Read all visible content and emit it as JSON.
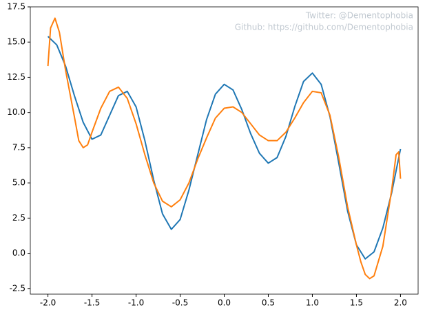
{
  "chart_data": {
    "type": "line",
    "annotations": [
      "Twitter: @Dementophobia",
      "Github: https://github.com/Dementophobia"
    ],
    "xlim": [
      -2.2,
      2.2
    ],
    "ylim": [
      -2.9,
      17.5
    ],
    "xticks": [
      {
        "value": -2,
        "label": "-2.0"
      },
      -1.5,
      {
        "value": -1,
        "label": "-1.0"
      },
      -0.5,
      {
        "value": 0,
        "label": "0.0"
      },
      0.5,
      {
        "value": 1,
        "label": "1.0"
      },
      1.5,
      {
        "value": 2,
        "label": "2.0"
      }
    ],
    "yticks": [
      -2.5,
      {
        "value": 0,
        "label": "0.0"
      },
      2.5,
      {
        "value": 5,
        "label": "5.0"
      },
      7.5,
      {
        "value": 10,
        "label": "10.0"
      },
      12.5,
      {
        "value": 15,
        "label": "15.0"
      },
      17.5
    ],
    "series": [
      {
        "color": "#1f77b4",
        "x": [
          -2.0,
          -1.9,
          -1.8,
          -1.7,
          -1.6,
          -1.5,
          -1.4,
          -1.3,
          -1.2,
          -1.1,
          -1.0,
          -0.9,
          -0.8,
          -0.7,
          -0.6,
          -0.5,
          -0.4,
          -0.3,
          -0.2,
          -0.1,
          0.0,
          0.1,
          0.2,
          0.3,
          0.4,
          0.5,
          0.6,
          0.7,
          0.8,
          0.9,
          1.0,
          1.1,
          1.2,
          1.3,
          1.4,
          1.5,
          1.6,
          1.7,
          1.8,
          1.9,
          2.0
        ],
        "values": [
          15.4,
          14.8,
          13.3,
          11.2,
          9.3,
          8.1,
          8.4,
          9.8,
          11.2,
          11.5,
          10.4,
          8.0,
          5.2,
          2.8,
          1.7,
          2.4,
          4.5,
          7.0,
          9.5,
          11.3,
          12.0,
          11.6,
          10.2,
          8.5,
          7.1,
          6.4,
          6.8,
          8.3,
          10.4,
          12.2,
          12.8,
          12.0,
          9.7,
          6.4,
          3.0,
          0.6,
          -0.4,
          0.1,
          1.8,
          4.3,
          7.4
        ]
      },
      {
        "color": "#ff7f0e",
        "x": [
          -2.0,
          -1.97,
          -1.92,
          -1.87,
          -1.8,
          -1.7,
          -1.65,
          -1.6,
          -1.55,
          -1.5,
          -1.4,
          -1.3,
          -1.2,
          -1.1,
          -1.0,
          -0.9,
          -0.8,
          -0.7,
          -0.6,
          -0.5,
          -0.4,
          -0.3,
          -0.2,
          -0.1,
          0.0,
          0.1,
          0.2,
          0.3,
          0.4,
          0.5,
          0.6,
          0.7,
          0.8,
          0.9,
          1.0,
          1.1,
          1.2,
          1.3,
          1.4,
          1.5,
          1.55,
          1.6,
          1.65,
          1.7,
          1.8,
          1.9,
          1.95,
          1.98,
          2.0
        ],
        "values": [
          13.3,
          16.0,
          16.7,
          15.7,
          13.0,
          9.7,
          8.0,
          7.5,
          7.7,
          8.6,
          10.3,
          11.5,
          11.8,
          11.0,
          9.2,
          7.0,
          5.0,
          3.7,
          3.3,
          3.8,
          5.0,
          6.7,
          8.2,
          9.6,
          10.3,
          10.4,
          10.0,
          9.2,
          8.4,
          8.0,
          8.0,
          8.6,
          9.6,
          10.7,
          11.5,
          11.4,
          9.8,
          6.8,
          3.3,
          0.6,
          -0.6,
          -1.5,
          -1.8,
          -1.6,
          0.5,
          4.5,
          7.0,
          7.2,
          5.3
        ]
      }
    ]
  }
}
